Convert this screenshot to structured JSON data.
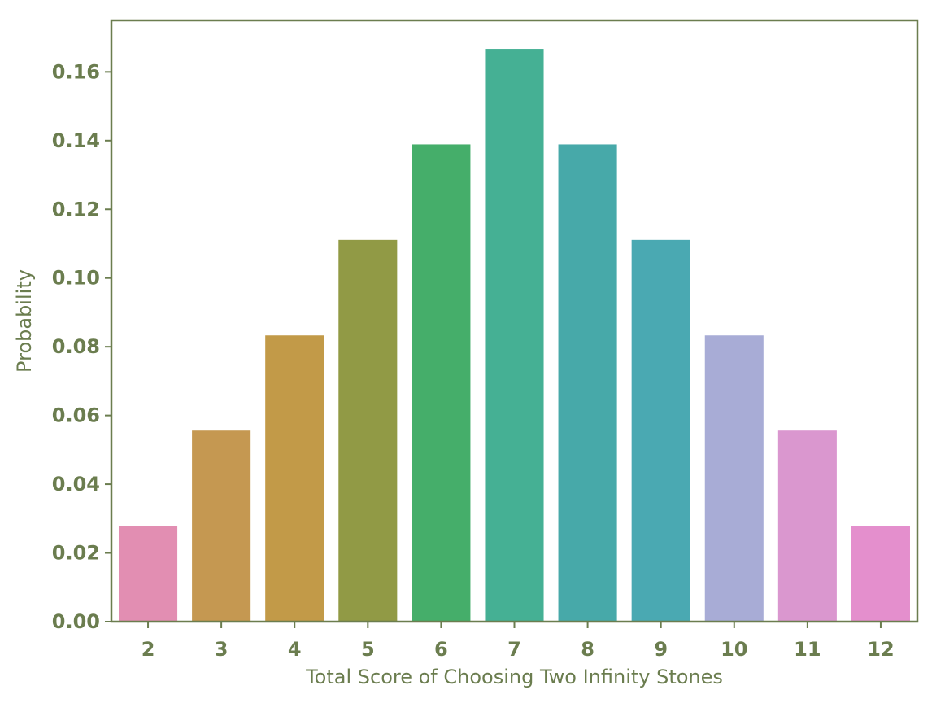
{
  "chart_data": {
    "type": "bar",
    "title": "",
    "xlabel": "Total Score of Choosing Two Infinity Stones",
    "ylabel": "Probability",
    "categories": [
      "2",
      "3",
      "4",
      "5",
      "6",
      "7",
      "8",
      "9",
      "10",
      "11",
      "12"
    ],
    "values": [
      0.0278,
      0.0556,
      0.0833,
      0.1111,
      0.1389,
      0.1667,
      0.1389,
      0.1111,
      0.0833,
      0.0556,
      0.0278
    ],
    "bar_colors": [
      "#e28eb2",
      "#c59851",
      "#c29a48",
      "#919a45",
      "#45ae6a",
      "#45b094",
      "#47a9a9",
      "#4aa9b2",
      "#a8acd6",
      "#da97cf",
      "#e48fcd"
    ],
    "yticks": [
      0.0,
      0.02,
      0.04,
      0.06,
      0.08,
      0.1,
      0.12,
      0.14,
      0.16
    ],
    "ytick_labels": [
      "0.00",
      "0.02",
      "0.04",
      "0.06",
      "0.08",
      "0.10",
      "0.12",
      "0.14",
      "0.16"
    ],
    "ylim": [
      0,
      0.175
    ],
    "grid": false,
    "legend": "none"
  },
  "colors": {
    "text": "#6b7d4f",
    "axis": "#6b7d4f"
  }
}
